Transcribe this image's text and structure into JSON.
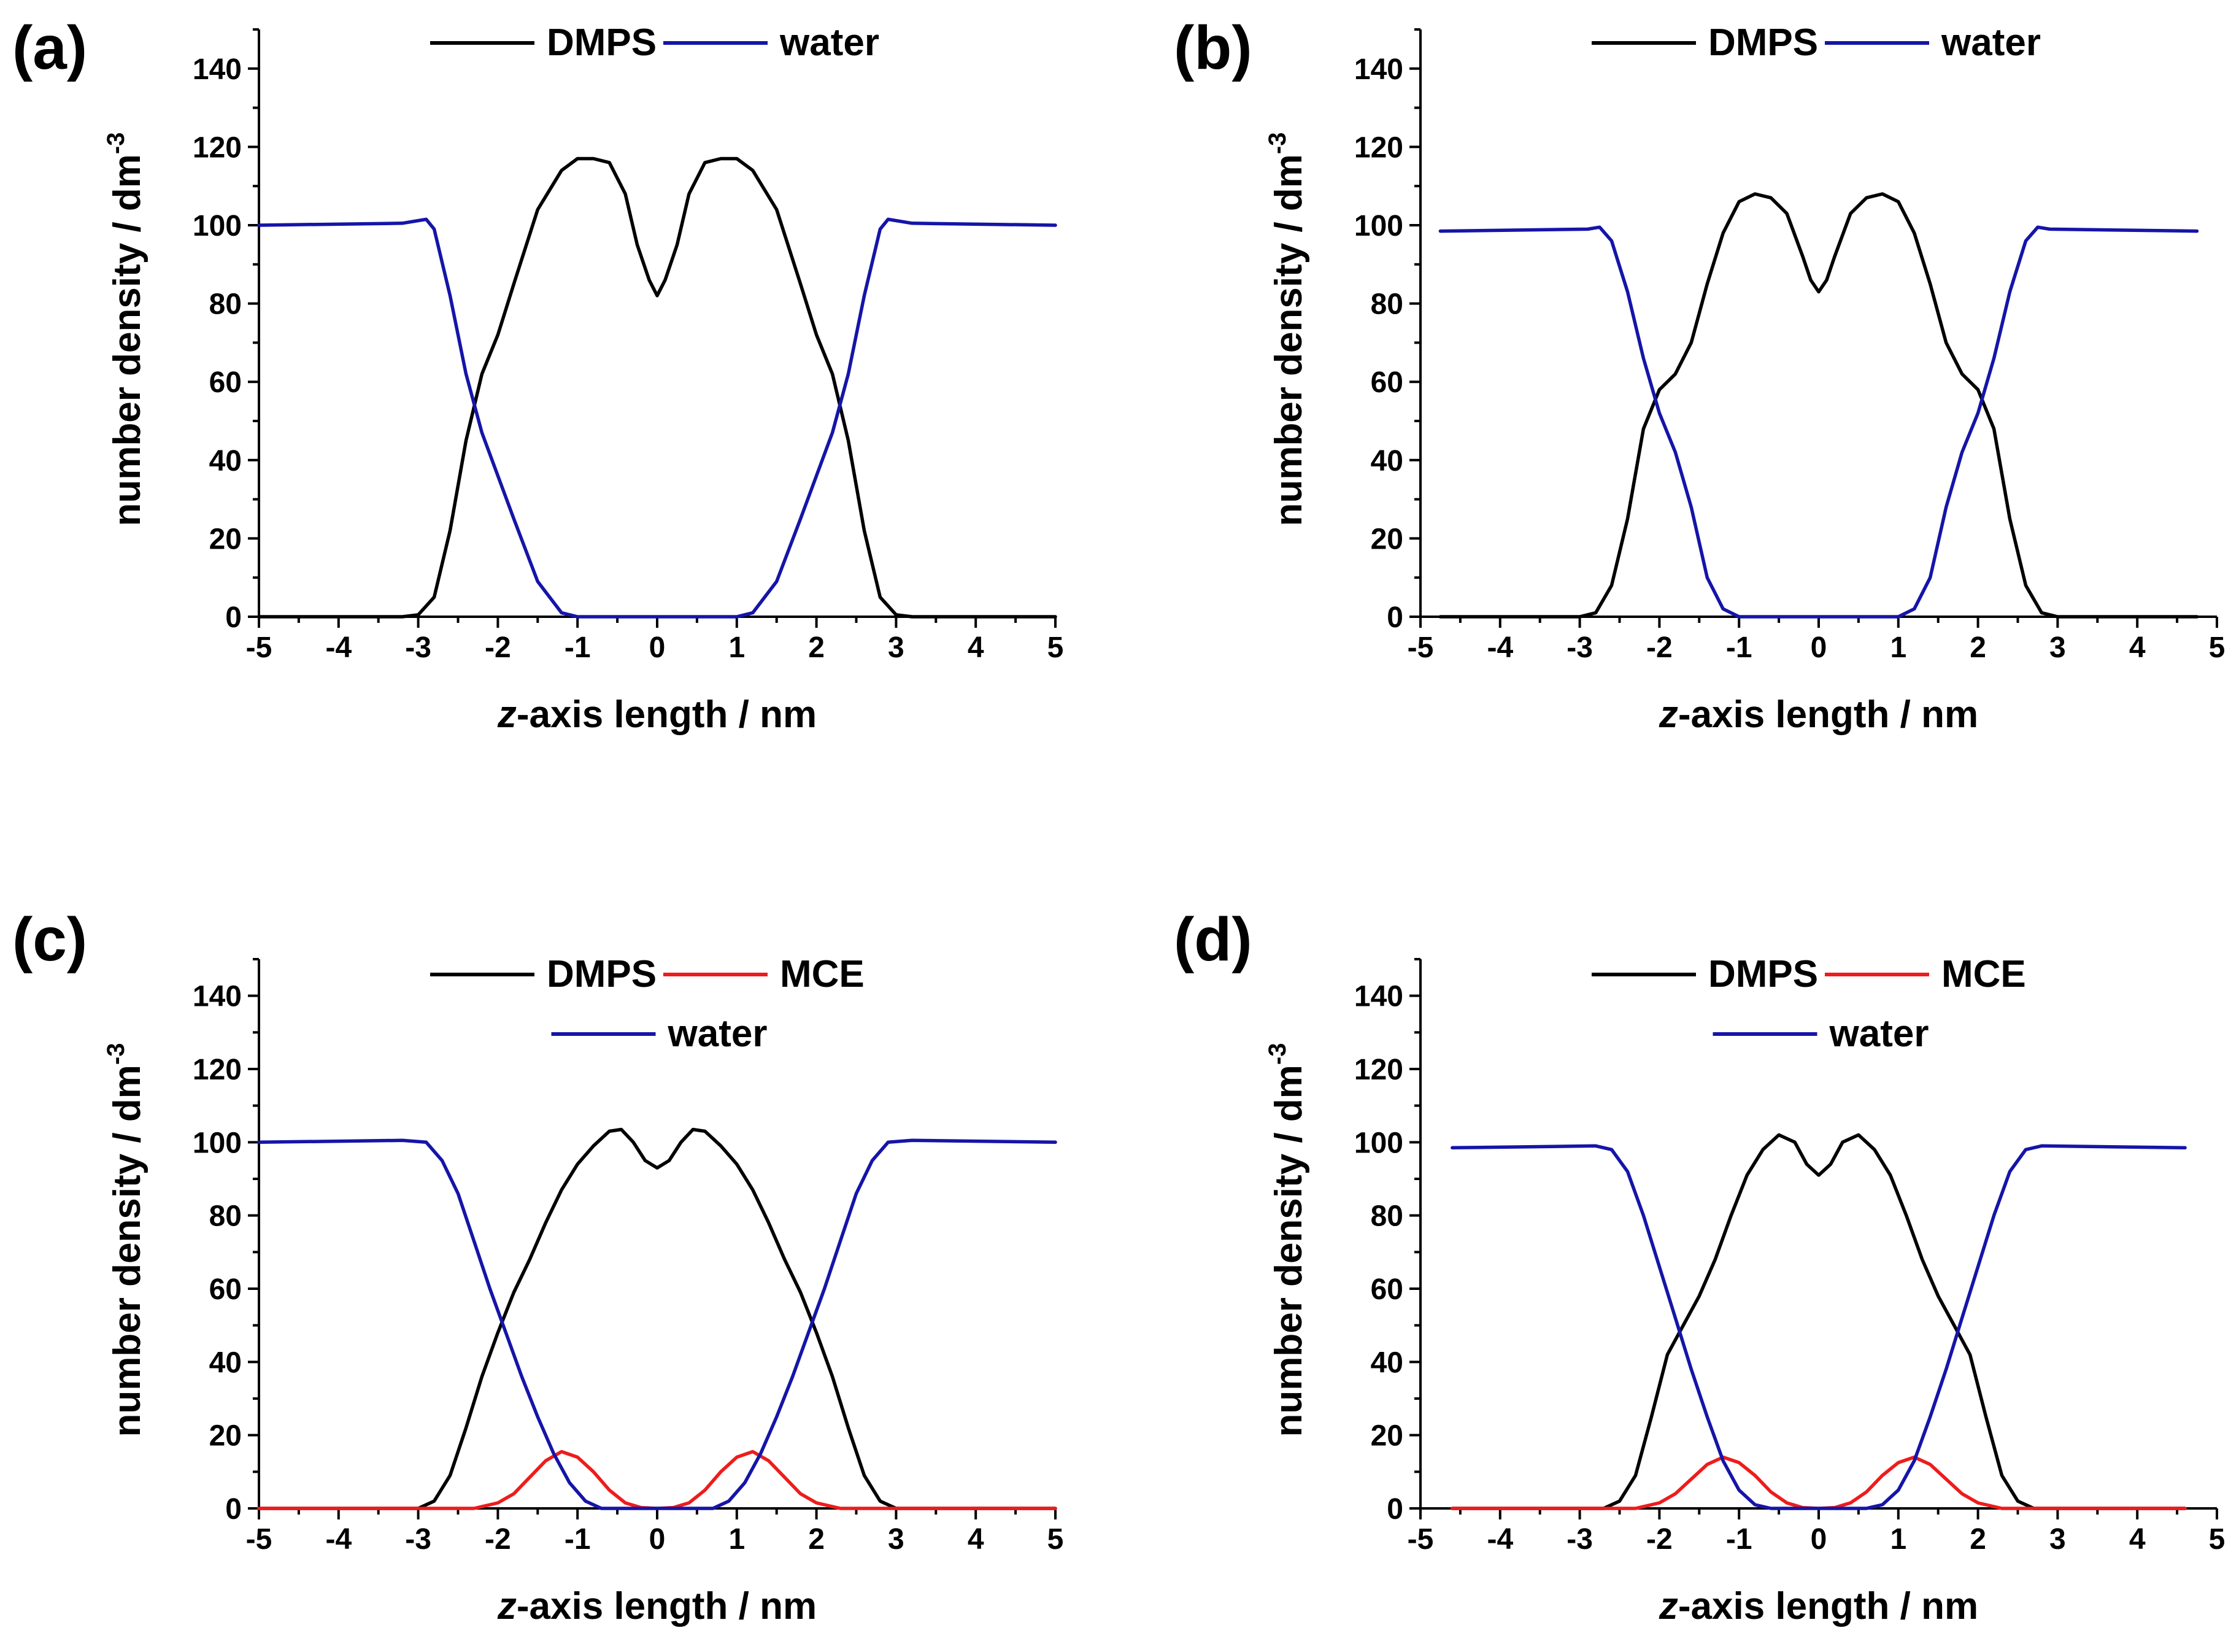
{
  "chart_data": [
    {
      "type": "line",
      "panel_label": "(a)",
      "xlabel": "z-axis length / nm",
      "xlabel_italic": "z",
      "xlabel_rest": "-axis length / nm",
      "ylabel": "number density / dm",
      "ylabel_sup": "-3",
      "xlim": [
        -5,
        5
      ],
      "ylim": [
        0,
        150
      ],
      "x_ticks": [
        "-5",
        "-4",
        "-3",
        "-2",
        "-1",
        "0",
        "1",
        "2",
        "3",
        "4",
        "5"
      ],
      "y_ticks": [
        "0",
        "20",
        "40",
        "60",
        "80",
        "100",
        "120",
        "140"
      ],
      "legend_rows": [
        [
          "DMPS",
          "water"
        ]
      ],
      "series": [
        {
          "name": "DMPS",
          "color": "#000000",
          "x": [
            -5,
            -3.2,
            -3.0,
            -2.8,
            -2.6,
            -2.4,
            -2.2,
            -2.0,
            -1.8,
            -1.5,
            -1.2,
            -1.0,
            -0.8,
            -0.6,
            -0.4,
            -0.25,
            -0.1,
            0,
            0.1,
            0.25,
            0.4,
            0.6,
            0.8,
            1.0,
            1.2,
            1.5,
            1.8,
            2.0,
            2.2,
            2.4,
            2.6,
            2.8,
            3.0,
            3.2,
            5
          ],
          "y": [
            0,
            0,
            0.5,
            5,
            22,
            45,
            62,
            72,
            85,
            104,
            114,
            117,
            117,
            116,
            108,
            95,
            86,
            82,
            86,
            95,
            108,
            116,
            117,
            117,
            114,
            104,
            85,
            72,
            62,
            45,
            22,
            5,
            0.5,
            0,
            0
          ]
        },
        {
          "name": "water",
          "color": "#1515a8",
          "x": [
            -5,
            -3.2,
            -2.9,
            -2.8,
            -2.6,
            -2.4,
            -2.2,
            -2.0,
            -1.8,
            -1.5,
            -1.2,
            -1.0,
            -0.5,
            0,
            0.5,
            1.0,
            1.2,
            1.5,
            1.8,
            2.0,
            2.2,
            2.4,
            2.6,
            2.8,
            2.9,
            3.2,
            5
          ],
          "y": [
            100,
            100.5,
            101.5,
            99,
            82,
            62,
            47,
            36,
            25,
            9,
            1,
            0,
            0,
            0,
            0,
            0,
            1,
            9,
            25,
            36,
            47,
            62,
            82,
            99,
            101.5,
            100.5,
            100
          ]
        }
      ]
    },
    {
      "type": "line",
      "panel_label": "(b)",
      "xlabel": "z-axis length / nm",
      "xlabel_italic": "z",
      "xlabel_rest": "-axis length / nm",
      "ylabel": "number density / dm",
      "ylabel_sup": "-3",
      "xlim": [
        -5,
        5
      ],
      "ylim": [
        0,
        150
      ],
      "x_ticks": [
        "-5",
        "-4",
        "-3",
        "-2",
        "-1",
        "0",
        "1",
        "2",
        "3",
        "4",
        "5"
      ],
      "y_ticks": [
        "0",
        "20",
        "40",
        "60",
        "80",
        "100",
        "120",
        "140"
      ],
      "legend_rows": [
        [
          "DMPS",
          "water"
        ]
      ],
      "series": [
        {
          "name": "DMPS",
          "color": "#000000",
          "x": [
            -4.75,
            -3.0,
            -2.8,
            -2.6,
            -2.4,
            -2.2,
            -2.0,
            -1.8,
            -1.6,
            -1.4,
            -1.2,
            -1.0,
            -0.8,
            -0.6,
            -0.4,
            -0.2,
            -0.1,
            0,
            0.1,
            0.2,
            0.4,
            0.6,
            0.8,
            1.0,
            1.2,
            1.4,
            1.6,
            1.8,
            2.0,
            2.2,
            2.4,
            2.6,
            2.8,
            3.0,
            4.75
          ],
          "y": [
            0,
            0,
            1,
            8,
            25,
            48,
            58,
            62,
            70,
            85,
            98,
            106,
            108,
            107,
            103,
            92,
            86,
            83,
            86,
            92,
            103,
            107,
            108,
            106,
            98,
            85,
            70,
            62,
            58,
            48,
            25,
            8,
            1,
            0,
            0
          ]
        },
        {
          "name": "water",
          "color": "#1515a8",
          "x": [
            -4.75,
            -2.9,
            -2.75,
            -2.6,
            -2.4,
            -2.2,
            -2.0,
            -1.8,
            -1.6,
            -1.4,
            -1.2,
            -1.0,
            0,
            1.0,
            1.2,
            1.4,
            1.6,
            1.8,
            2.0,
            2.2,
            2.4,
            2.6,
            2.75,
            2.9,
            4.75
          ],
          "y": [
            98.5,
            99,
            99.5,
            96,
            83,
            66,
            52,
            42,
            28,
            10,
            2,
            0,
            0,
            0,
            2,
            10,
            28,
            42,
            52,
            66,
            83,
            96,
            99.5,
            99,
            98.5
          ]
        }
      ]
    },
    {
      "type": "line",
      "panel_label": "(c)",
      "xlabel": "z-axis length / nm",
      "xlabel_italic": "z",
      "xlabel_rest": "-axis length / nm",
      "ylabel": "number density / dm",
      "ylabel_sup": "-3",
      "xlim": [
        -5,
        5
      ],
      "ylim": [
        0,
        150
      ],
      "x_ticks": [
        "-5",
        "-4",
        "-3",
        "-2",
        "-1",
        "0",
        "1",
        "2",
        "3",
        "4",
        "5"
      ],
      "y_ticks": [
        "0",
        "20",
        "40",
        "60",
        "80",
        "100",
        "120",
        "140"
      ],
      "legend_rows": [
        [
          "DMPS",
          "MCE"
        ],
        [
          "water"
        ]
      ],
      "series": [
        {
          "name": "DMPS",
          "color": "#000000",
          "x": [
            -5,
            -3.0,
            -2.8,
            -2.6,
            -2.4,
            -2.2,
            -2.0,
            -1.8,
            -1.6,
            -1.4,
            -1.2,
            -1.0,
            -0.8,
            -0.6,
            -0.45,
            -0.3,
            -0.15,
            0,
            0.15,
            0.3,
            0.45,
            0.6,
            0.8,
            1.0,
            1.2,
            1.4,
            1.6,
            1.8,
            2.0,
            2.2,
            2.4,
            2.6,
            2.8,
            3.0,
            5
          ],
          "y": [
            0,
            0,
            2,
            9,
            22,
            36,
            48,
            59,
            68,
            78,
            87,
            94,
            99,
            103,
            103.5,
            100,
            95,
            93,
            95,
            100,
            103.5,
            103,
            99,
            94,
            87,
            78,
            68,
            59,
            48,
            36,
            22,
            9,
            2,
            0,
            0
          ]
        },
        {
          "name": "MCE",
          "color": "#ee1c1c",
          "x": [
            -5,
            -2.3,
            -2.0,
            -1.8,
            -1.6,
            -1.4,
            -1.2,
            -1.0,
            -0.8,
            -0.6,
            -0.4,
            -0.2,
            0,
            0.2,
            0.4,
            0.6,
            0.8,
            1.0,
            1.2,
            1.4,
            1.6,
            1.8,
            2.0,
            2.3,
            5
          ],
          "y": [
            0,
            0,
            1.5,
            4,
            8.5,
            13,
            15.5,
            14,
            10,
            5,
            1.5,
            0.2,
            0,
            0.2,
            1.5,
            5,
            10,
            14,
            15.5,
            13,
            8.5,
            4,
            1.5,
            0,
            0
          ]
        },
        {
          "name": "water",
          "color": "#1515a8",
          "x": [
            -5,
            -3.2,
            -2.9,
            -2.7,
            -2.5,
            -2.3,
            -2.1,
            -1.9,
            -1.7,
            -1.5,
            -1.3,
            -1.1,
            -0.9,
            -0.7,
            0,
            0.7,
            0.9,
            1.1,
            1.3,
            1.5,
            1.7,
            1.9,
            2.1,
            2.3,
            2.5,
            2.7,
            2.9,
            3.2,
            5
          ],
          "y": [
            100,
            100.5,
            100,
            95,
            86,
            73,
            60,
            48,
            36,
            25,
            15,
            7,
            2,
            0,
            0,
            0,
            2,
            7,
            15,
            25,
            36,
            48,
            60,
            73,
            86,
            95,
            100,
            100.5,
            100
          ]
        }
      ]
    },
    {
      "type": "line",
      "panel_label": "(d)",
      "xlabel": "z-axis length / nm",
      "xlabel_italic": "z",
      "xlabel_rest": "-axis length / nm",
      "ylabel": "number density / dm",
      "ylabel_sup": "-3",
      "xlim": [
        -5,
        5
      ],
      "ylim": [
        0,
        150
      ],
      "x_ticks": [
        "-5",
        "-4",
        "-3",
        "-2",
        "-1",
        "0",
        "1",
        "2",
        "3",
        "4",
        "5"
      ],
      "y_ticks": [
        "0",
        "20",
        "40",
        "60",
        "80",
        "100",
        "120",
        "140"
      ],
      "legend_rows": [
        [
          "DMPS",
          "MCE"
        ],
        [
          "water"
        ]
      ],
      "series": [
        {
          "name": "DMPS",
          "color": "#000000",
          "x": [
            -4.6,
            -2.7,
            -2.5,
            -2.3,
            -2.1,
            -1.9,
            -1.7,
            -1.5,
            -1.3,
            -1.1,
            -0.9,
            -0.7,
            -0.5,
            -0.3,
            -0.15,
            0,
            0.15,
            0.3,
            0.5,
            0.7,
            0.9,
            1.1,
            1.3,
            1.5,
            1.7,
            1.9,
            2.1,
            2.3,
            2.5,
            2.7,
            4.6
          ],
          "y": [
            0,
            0,
            2,
            9,
            25,
            42,
            50,
            58,
            68,
            80,
            91,
            98,
            102,
            100,
            94,
            91,
            94,
            100,
            102,
            98,
            91,
            80,
            68,
            58,
            50,
            42,
            25,
            9,
            2,
            0,
            0
          ]
        },
        {
          "name": "MCE",
          "color": "#ee1c1c",
          "x": [
            -4.6,
            -2.3,
            -2.0,
            -1.8,
            -1.6,
            -1.4,
            -1.2,
            -1.0,
            -0.8,
            -0.6,
            -0.4,
            -0.2,
            0,
            0.2,
            0.4,
            0.6,
            0.8,
            1.0,
            1.2,
            1.4,
            1.6,
            1.8,
            2.0,
            2.3,
            4.6
          ],
          "y": [
            0,
            0,
            1.5,
            4,
            8,
            12,
            14,
            12.5,
            9,
            4.5,
            1.5,
            0.2,
            0,
            0.2,
            1.5,
            4.5,
            9,
            12.5,
            14,
            12,
            8,
            4,
            1.5,
            0,
            0
          ]
        },
        {
          "name": "water",
          "color": "#1515a8",
          "x": [
            -4.6,
            -2.8,
            -2.6,
            -2.4,
            -2.2,
            -2.0,
            -1.8,
            -1.6,
            -1.4,
            -1.2,
            -1.0,
            -0.8,
            -0.6,
            0,
            0.6,
            0.8,
            1.0,
            1.2,
            1.4,
            1.6,
            1.8,
            2.0,
            2.2,
            2.4,
            2.6,
            2.8,
            4.6
          ],
          "y": [
            98.5,
            99,
            98,
            92,
            80,
            66,
            52,
            38,
            25,
            13,
            5,
            1,
            0,
            0,
            0,
            1,
            5,
            13,
            25,
            38,
            52,
            66,
            80,
            92,
            98,
            99,
            98.5
          ]
        }
      ]
    }
  ]
}
